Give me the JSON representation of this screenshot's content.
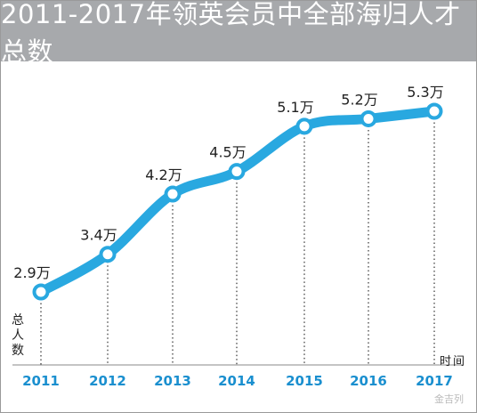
{
  "chart_data": {
    "type": "line",
    "title": "2011-2017年领英会员中全部海归人才总数",
    "xlabel": "时间",
    "ylabel": "总人数",
    "categories": [
      "2011",
      "2012",
      "2013",
      "2014",
      "2015",
      "2016",
      "2017"
    ],
    "series": [
      {
        "values": [
          2.9,
          3.4,
          4.2,
          4.5,
          5.1,
          5.2,
          5.3
        ]
      }
    ],
    "data_labels": [
      "2.9万",
      "3.4万",
      "4.2万",
      "4.5万",
      "5.1万",
      "5.2万",
      "5.3万"
    ],
    "ylim": [
      1.5,
      5.8
    ],
    "grid": false,
    "legend": "none",
    "colors": {
      "line": "#29a8e0",
      "marker_fill": "#ffffff",
      "title_bg": "#a7a9ac",
      "tick_label": "#1a8fcf"
    }
  },
  "watermark": "金吉列"
}
